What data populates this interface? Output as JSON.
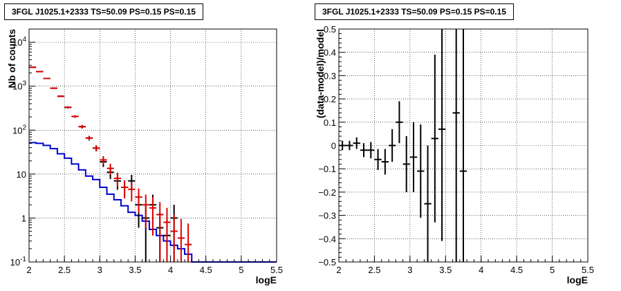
{
  "left_title": "3FGL J1025.1+2333 TS=50.09 PS=0.15 PS=0.15",
  "right_title": "3FGL J1025.1+2333 TS=50.09 PS=0.15 PS=0.15",
  "chart_data": [
    {
      "type": "line",
      "xlabel": "logE",
      "ylabel": "Nb of counts",
      "xlim": [
        2,
        5.5
      ],
      "ylim": [
        0.1,
        20000
      ],
      "log_y": true,
      "grid": true,
      "xticks": [
        "2",
        "2.5",
        "3",
        "3.5",
        "4",
        "4.5",
        "5",
        "5.5"
      ],
      "yticks": [
        {
          "v": 0.1,
          "t": "10",
          "e": "-1"
        },
        {
          "v": 1,
          "t": "1",
          "e": ""
        },
        {
          "v": 10,
          "t": "10",
          "e": ""
        },
        {
          "v": 100,
          "t": "10",
          "e": "2"
        },
        {
          "v": 1000,
          "t": "10",
          "e": "3"
        },
        {
          "v": 10000,
          "t": "10",
          "e": "4"
        }
      ],
      "colors": {
        "data": "#000000",
        "model": "#dd0000",
        "background": "#0000cc"
      },
      "series": [
        {
          "key": "data",
          "x": [
            2.05,
            2.15,
            2.25,
            2.35,
            2.45,
            2.55,
            2.65,
            2.75,
            2.85,
            2.95,
            3.05,
            3.15,
            3.25,
            3.35,
            3.45,
            3.55,
            3.65,
            3.75,
            3.85,
            3.95,
            4.05,
            4.15
          ],
          "y": [
            2700,
            2150,
            1500,
            900,
            590,
            330,
            205,
            120,
            66,
            39,
            19,
            11,
            7,
            5,
            7,
            2,
            1,
            2,
            0.6,
            0.4,
            1,
            0.1
          ],
          "err": [
            50,
            45,
            38,
            30,
            24,
            18,
            14,
            11,
            8,
            6,
            4.5,
            3.3,
            2.6,
            2.2,
            2.6,
            1.4,
            1,
            1.4,
            0.7,
            0.6,
            1,
            0
          ]
        },
        {
          "key": "model",
          "x": [
            2.05,
            2.15,
            2.25,
            2.35,
            2.45,
            2.55,
            2.65,
            2.75,
            2.85,
            2.95,
            3.05,
            3.15,
            3.25,
            3.35,
            3.45,
            3.55,
            3.65,
            3.75,
            3.85,
            3.95,
            4.05,
            4.15,
            4.25
          ],
          "y": [
            2700,
            2150,
            1500,
            900,
            590,
            330,
            205,
            120,
            66,
            39,
            21,
            13.5,
            8,
            5,
            4.5,
            3,
            2,
            1.7,
            1.2,
            0.8,
            0.5,
            0.35,
            0.25
          ],
          "err": [
            52,
            46,
            39,
            30,
            24,
            18,
            14,
            11,
            8,
            6,
            4.6,
            3.7,
            2.8,
            2.2,
            2.1,
            1.7,
            1.4,
            1.3,
            1.1,
            0.9,
            0.7,
            0.6,
            0.5
          ]
        },
        {
          "key": "background",
          "step_edges": [
            2,
            2.1,
            2.2,
            2.3,
            2.4,
            2.5,
            2.6,
            2.7,
            2.8,
            2.9,
            3.0,
            3.1,
            3.2,
            3.3,
            3.4,
            3.5,
            3.6,
            3.7,
            3.8,
            3.9,
            4.0,
            4.1,
            4.2,
            4.3,
            5.5
          ],
          "y": [
            52,
            50,
            45,
            38,
            29,
            23,
            17,
            12.5,
            9,
            7.5,
            5,
            3.5,
            2.6,
            1.9,
            1.35,
            1.15,
            0.85,
            0.55,
            0.4,
            0.3,
            0.24,
            0.2,
            0.15,
            0.1
          ]
        }
      ]
    },
    {
      "type": "scatter",
      "xlabel": "logE",
      "ylabel": "(data-model)/model",
      "xlim": [
        2,
        5.5
      ],
      "ylim": [
        -0.5,
        0.5
      ],
      "grid": true,
      "xticks": [
        "2",
        "2.5",
        "3",
        "3.5",
        "4",
        "4.5",
        "5",
        "5.5"
      ],
      "yticks": [
        "−0.5",
        "−0.4",
        "−0.3",
        "−0.2",
        "−0.1",
        "0",
        "0.1",
        "0.2",
        "0.3",
        "0.4",
        "0.5"
      ],
      "x": [
        2.05,
        2.15,
        2.25,
        2.35,
        2.45,
        2.55,
        2.65,
        2.75,
        2.85,
        2.95,
        3.05,
        3.15,
        3.25,
        3.35,
        3.45,
        3.65,
        3.75
      ],
      "y": [
        0,
        0,
        0.01,
        -0.02,
        -0.02,
        -0.06,
        -0.07,
        0,
        0.1,
        -0.08,
        -0.05,
        -0.11,
        -0.25,
        0.03,
        0.07,
        0.14,
        -0.11
      ],
      "err": [
        0.02,
        0.02,
        0.025,
        0.03,
        0.035,
        0.045,
        0.055,
        0.07,
        0.09,
        0.12,
        0.15,
        0.2,
        0.25,
        0.36,
        0.48,
        0.7,
        0.7
      ]
    }
  ]
}
